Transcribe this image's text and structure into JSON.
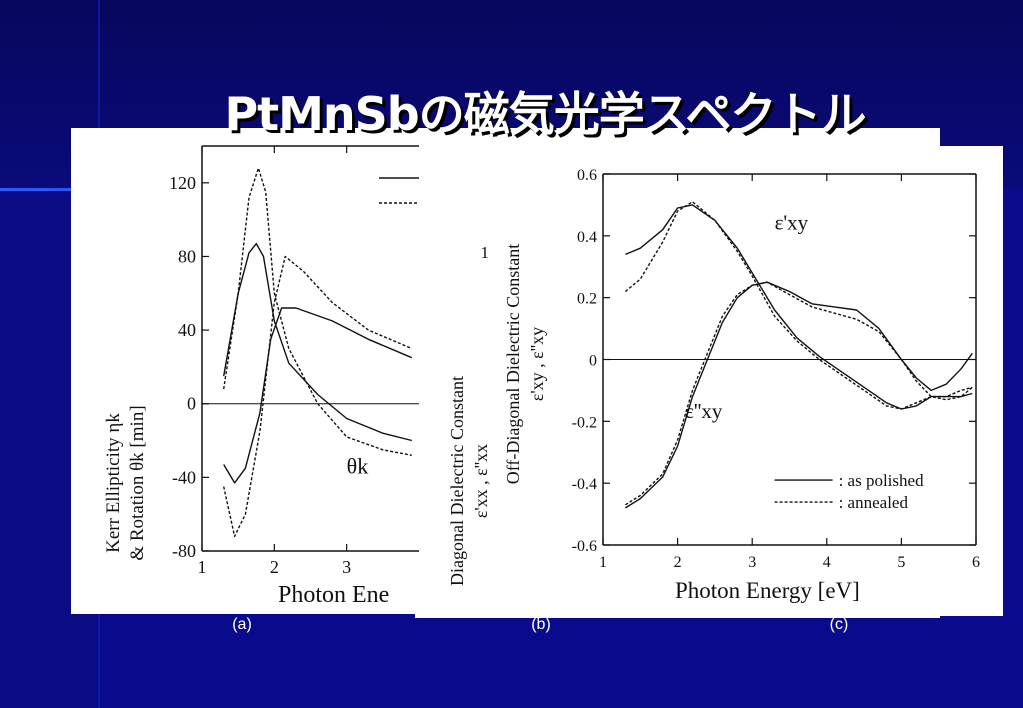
{
  "slide": {
    "title": "PtMnSbの磁気光学スペクトル"
  },
  "captions": [
    "(a)",
    "(b)",
    "(c)"
  ],
  "colors": {
    "background": "#0a0a8c",
    "title": "#ffffff",
    "panel": "#ffffff",
    "ink": "#111111"
  },
  "chart_data": [
    {
      "type": "line",
      "panel": "a",
      "xlabel": "Photon Ene",
      "ylabel_line1": "Kerr Ellipticity ηk",
      "ylabel_line2": "& Rotation θk [min]",
      "xlim": [
        1,
        4
      ],
      "ylim": [
        -80,
        140
      ],
      "xticks": [
        1,
        2,
        3
      ],
      "yticks": [
        -80,
        -40,
        0,
        40,
        80,
        120
      ],
      "annotations": [
        {
          "text": "θk",
          "x": 3.0,
          "y": -38
        }
      ],
      "series": [
        {
          "style": "solid",
          "x": [
            1.3,
            1.5,
            1.65,
            1.75,
            1.85,
            2.0,
            2.2,
            2.6,
            3.0,
            3.5,
            3.9
          ],
          "y": [
            15,
            60,
            82,
            87,
            80,
            45,
            22,
            5,
            -8,
            -16,
            -20
          ]
        },
        {
          "style": "dotted",
          "x": [
            1.3,
            1.5,
            1.65,
            1.78,
            1.88,
            2.0,
            2.2,
            2.6,
            3.0,
            3.5,
            3.9
          ],
          "y": [
            8,
            60,
            112,
            128,
            115,
            60,
            30,
            0,
            -18,
            -25,
            -28
          ]
        },
        {
          "style": "solid",
          "x": [
            1.3,
            1.45,
            1.6,
            1.8,
            1.95,
            2.1,
            2.3,
            2.8,
            3.3,
            3.9
          ],
          "y": [
            -33,
            -43,
            -35,
            -5,
            35,
            52,
            52,
            45,
            35,
            25
          ]
        },
        {
          "style": "dotted",
          "x": [
            1.3,
            1.45,
            1.6,
            1.8,
            2.0,
            2.15,
            2.4,
            2.8,
            3.3,
            3.9
          ],
          "y": [
            -45,
            -72,
            -60,
            -15,
            55,
            80,
            72,
            55,
            40,
            30
          ]
        }
      ]
    },
    {
      "type": "line",
      "panel": "b",
      "ylabel_line1": "Diagonal Dielectric Constant",
      "ylabel_line2": "ε'xx , ε''xx",
      "tick_label": "1"
    },
    {
      "type": "line",
      "panel": "c",
      "xlabel": "Photon Energy  [eV]",
      "ylabel_line1": "Off-Diagonal Dielectric Constant",
      "ylabel_line2": "ε'xy , ε''xy",
      "xlim": [
        1,
        6
      ],
      "ylim": [
        -0.6,
        0.6
      ],
      "xticks": [
        1,
        2,
        3,
        4,
        5,
        6
      ],
      "yticks": [
        -0.6,
        -0.4,
        -0.2,
        0,
        0.2,
        0.4,
        0.6
      ],
      "ytick_labels": [
        "-0.6",
        "-0.4",
        "-0.2",
        "0",
        "0.2",
        "0.4",
        "0.6"
      ],
      "annotations": [
        {
          "text": "ε'xy",
          "x": 3.3,
          "y": 0.42
        },
        {
          "text": "ε''xy",
          "x": 2.1,
          "y": -0.19
        }
      ],
      "legend": {
        "position": "bottom-right",
        "entries": [
          {
            "style": "solid",
            "label": ": as polished"
          },
          {
            "style": "dotted",
            "label": ": annealed"
          }
        ]
      },
      "series": [
        {
          "name": "ε'xy",
          "style": "solid",
          "x": [
            1.3,
            1.5,
            1.8,
            2.0,
            2.2,
            2.5,
            2.8,
            3.0,
            3.3,
            3.6,
            3.9,
            4.2,
            4.5,
            4.8,
            5.0,
            5.2,
            5.4,
            5.6,
            5.8,
            5.95
          ],
          "y": [
            0.34,
            0.36,
            0.42,
            0.49,
            0.5,
            0.45,
            0.36,
            0.28,
            0.16,
            0.07,
            0.01,
            -0.04,
            -0.09,
            -0.14,
            -0.16,
            -0.15,
            -0.12,
            -0.12,
            -0.12,
            -0.11
          ]
        },
        {
          "name": "ε'xy",
          "style": "dotted",
          "x": [
            1.3,
            1.5,
            1.8,
            2.0,
            2.2,
            2.5,
            2.8,
            3.0,
            3.3,
            3.6,
            3.9,
            4.2,
            4.5,
            4.8,
            5.0,
            5.2,
            5.4,
            5.6,
            5.8,
            5.95
          ],
          "y": [
            0.22,
            0.26,
            0.38,
            0.48,
            0.51,
            0.45,
            0.35,
            0.27,
            0.14,
            0.06,
            0.0,
            -0.05,
            -0.1,
            -0.15,
            -0.16,
            -0.14,
            -0.12,
            -0.13,
            -0.12,
            -0.09
          ]
        },
        {
          "name": "ε''xy",
          "style": "solid",
          "x": [
            1.3,
            1.5,
            1.8,
            2.0,
            2.2,
            2.4,
            2.6,
            2.8,
            3.0,
            3.2,
            3.5,
            3.8,
            4.1,
            4.4,
            4.7,
            5.0,
            5.2,
            5.4,
            5.6,
            5.8,
            5.95
          ],
          "y": [
            -0.48,
            -0.45,
            -0.38,
            -0.28,
            -0.12,
            0.0,
            0.12,
            0.2,
            0.24,
            0.25,
            0.22,
            0.18,
            0.17,
            0.16,
            0.1,
            0.0,
            -0.06,
            -0.1,
            -0.08,
            -0.03,
            0.02
          ]
        },
        {
          "name": "ε''xy",
          "style": "dotted",
          "x": [
            1.3,
            1.5,
            1.8,
            2.0,
            2.2,
            2.4,
            2.6,
            2.8,
            3.0,
            3.2,
            3.5,
            3.8,
            4.1,
            4.4,
            4.7,
            5.0,
            5.2,
            5.4,
            5.6,
            5.8,
            5.95
          ],
          "y": [
            -0.47,
            -0.44,
            -0.37,
            -0.26,
            -0.1,
            0.02,
            0.14,
            0.21,
            0.24,
            0.25,
            0.21,
            0.17,
            0.15,
            0.13,
            0.09,
            0.0,
            -0.07,
            -0.12,
            -0.12,
            -0.1,
            -0.09
          ]
        }
      ]
    }
  ]
}
